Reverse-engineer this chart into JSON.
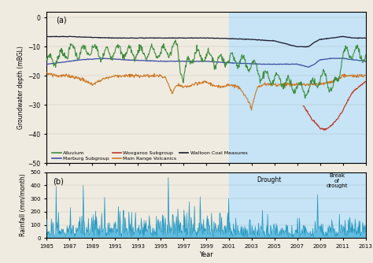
{
  "title_a": "(a)",
  "title_b": "(b)",
  "ylabel_a": "Groundwater depth (mBGL)",
  "ylabel_b": "Rainfall (mm/month)",
  "xlabel": "Year",
  "xlim": [
    1985,
    2013
  ],
  "ylim_a": [
    -50,
    2
  ],
  "ylim_b": [
    0,
    500
  ],
  "yticks_a": [
    0,
    -10,
    -20,
    -30,
    -40,
    -50
  ],
  "yticks_b": [
    0,
    100,
    200,
    300,
    400,
    500
  ],
  "xticks": [
    1985,
    1987,
    1989,
    1991,
    1993,
    1995,
    1997,
    1999,
    2001,
    2003,
    2005,
    2007,
    2009,
    2011,
    2013
  ],
  "shade_drought_start": 2001,
  "shade_drought_end": 2008.5,
  "shade_break_start": 2008.5,
  "shade_break_end": 2013,
  "shade_color": "#c6e4f5",
  "drought_label": "Drought",
  "drought_x": 2004.5,
  "break_label": "Break\nof\ndrought",
  "break_x": 2010.5,
  "color_alluvium": "#3d8c40",
  "color_marburg": "#3a4fa8",
  "color_woogaroo": "#c0392b",
  "color_mainrange": "#cc7722",
  "color_walloon": "#1a1a2e",
  "bg_color": "#f2ede3",
  "fig_bg": "#e8e0d0"
}
